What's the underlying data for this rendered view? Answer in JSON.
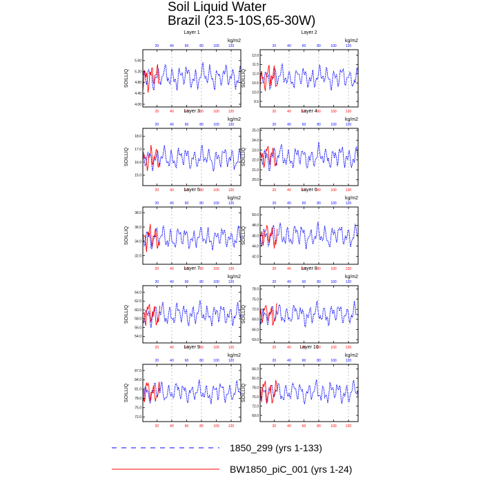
{
  "chart_data": {
    "type": "line",
    "title": "Soil Liquid Water",
    "subtitle": "Brazil (23.5-10S,65-30W)",
    "units": "kg/m2",
    "ylabel": "SOILLIQ",
    "top_axis_ticks": [
      20,
      40,
      60,
      80,
      100,
      120
    ],
    "bottom_axis_ticks": [
      20,
      40,
      60,
      80,
      100,
      120
    ],
    "xlim": [
      1,
      133
    ],
    "colors": {
      "series1": "#0000ff",
      "series2": "#ff0000",
      "grid": "#999999"
    },
    "series": [
      {
        "name": "1850_299 (yrs 1-133)",
        "years": 133,
        "style": "dashed",
        "color": "#0000ff"
      },
      {
        "name": "BW1850_piC_001 (yrs 1-24)",
        "years": 24,
        "style": "solid",
        "color": "#ff0000"
      }
    ],
    "panels": [
      {
        "title": "Layer 1",
        "ylim": [
          3.9,
          6.0
        ],
        "yticks": [
          "4.00",
          "4.40",
          "4.80",
          "5.20",
          "5.60"
        ],
        "mean": 5.0,
        "amp": 0.45
      },
      {
        "title": "Layer 2",
        "ylim": [
          9.2,
          12.3
        ],
        "yticks": [
          "9.5",
          "10.0",
          "10.5",
          "11.0",
          "11.5",
          "12.0"
        ],
        "mean": 10.8,
        "amp": 0.6
      },
      {
        "title": "Layer 3",
        "ylim": [
          14.2,
          18.6
        ],
        "yticks": [
          "15.0",
          "16.0",
          "17.0",
          "18.0"
        ],
        "mean": 16.3,
        "amp": 0.9
      },
      {
        "title": "Layer 4",
        "ylim": [
          19.4,
          25.2
        ],
        "yticks": [
          "20.0",
          "21.0",
          "22.0",
          "23.0",
          "24.0",
          "25.0"
        ],
        "mean": 22.3,
        "amp": 1.2
      },
      {
        "title": "Layer 5",
        "ylim": [
          30.8,
          38.8
        ],
        "yticks": [
          "32.0",
          "34.0",
          "36.0",
          "38.0"
        ],
        "mean": 34.5,
        "amp": 1.6
      },
      {
        "title": "Layer 6",
        "ylim": [
          40.5,
          51.5
        ],
        "yticks": [
          "42.0",
          "44.0",
          "46.0",
          "48.0",
          "50.0"
        ],
        "mean": 46.0,
        "amp": 2.2
      },
      {
        "title": "Layer 7",
        "ylim": [
          52.5,
          65.5
        ],
        "yticks": [
          "54.0",
          "56.0",
          "58.0",
          "60.0",
          "62.0",
          "64.0"
        ],
        "mean": 59.0,
        "amp": 2.6
      },
      {
        "title": "Layer 8",
        "ylim": [
          62.0,
          79.0
        ],
        "yticks": [
          "63.0",
          "66.0",
          "69.0",
          "72.0",
          "75.0",
          "78.0"
        ],
        "mean": 70.5,
        "amp": 3.2
      },
      {
        "title": "Layer 9",
        "ylim": [
          70.5,
          89.0
        ],
        "yticks": [
          "72.0",
          "75.0",
          "78.0",
          "81.0",
          "84.0",
          "87.0"
        ],
        "mean": 80.0,
        "amp": 3.5
      },
      {
        "title": "Layer 10",
        "ylim": [
          67.0,
          85.5
        ],
        "yticks": [
          "69.0",
          "72.0",
          "75.0",
          "78.0",
          "81.0",
          "84.0"
        ],
        "mean": 76.5,
        "amp": 3.5
      }
    ]
  }
}
